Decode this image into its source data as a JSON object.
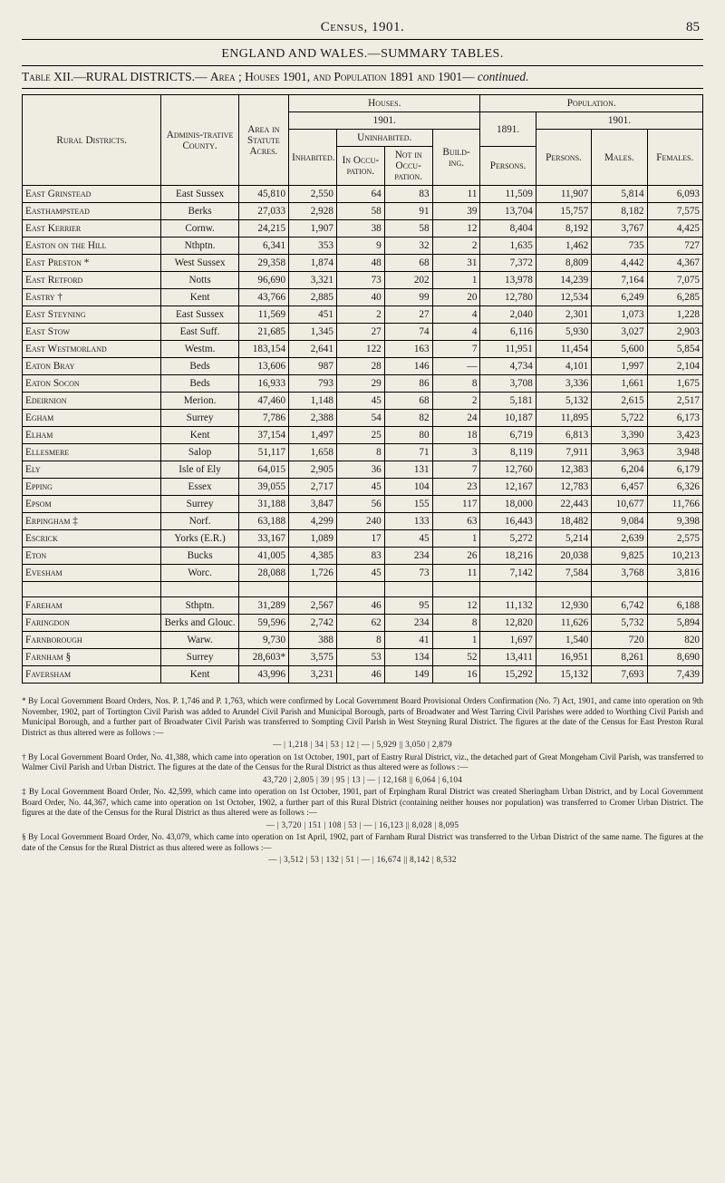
{
  "page": {
    "running_head": "Census, 1901.",
    "number": "85",
    "eng_wales": "ENGLAND AND WALES.—SUMMARY TABLES.",
    "table_line_a": "Table XII.—RURAL DISTRICTS.—",
    "table_line_b": "Area ; ",
    "table_line_c": "Houses 1901, and Population 1891 and 1901—",
    "table_line_d": "continued."
  },
  "headers": {
    "rural_districts": "Rural Districts.",
    "admin_county": "Adminis-trative County.",
    "area": "Area in Statute Acres.",
    "houses": "Houses.",
    "houses_1901": "1901.",
    "inhabited": "Inhabited.",
    "uninhabited": "Uninhabited.",
    "in_occ": "In Occu-pation.",
    "not_in_occ": "Not in Occu-pation.",
    "building": "Build-ing.",
    "population": "Population.",
    "pop_1891": "1891.",
    "pop_1901": "1901.",
    "persons": "Persons.",
    "persons2": "Persons.",
    "males": "Males.",
    "females": "Females."
  },
  "rows": [
    {
      "d": "East Grinstead",
      "c": "East Sussex",
      "a": "45,810",
      "i": "2,550",
      "o": "64",
      "n": "83",
      "b": "11",
      "p91": "11,509",
      "p01": "11,907",
      "m": "5,814",
      "f": "6,093"
    },
    {
      "d": "Easthampstead",
      "c": "Berks",
      "a": "27,033",
      "i": "2,928",
      "o": "58",
      "n": "91",
      "b": "39",
      "p91": "13,704",
      "p01": "15,757",
      "m": "8,182",
      "f": "7,575"
    },
    {
      "d": "East Kerrier",
      "c": "Cornw.",
      "a": "24,215",
      "i": "1,907",
      "o": "38",
      "n": "58",
      "b": "12",
      "p91": "8,404",
      "p01": "8,192",
      "m": "3,767",
      "f": "4,425"
    },
    {
      "d": "Easton on the Hill",
      "c": "Nthptn.",
      "a": "6,341",
      "i": "353",
      "o": "9",
      "n": "32",
      "b": "2",
      "p91": "1,635",
      "p01": "1,462",
      "m": "735",
      "f": "727"
    },
    {
      "d": "East Preston *",
      "c": "West Sussex",
      "a": "29,358",
      "i": "1,874",
      "o": "48",
      "n": "68",
      "b": "31",
      "p91": "7,372",
      "p01": "8,809",
      "m": "4,442",
      "f": "4,367"
    },
    {
      "d": "East Retford",
      "c": "Notts",
      "a": "96,690",
      "i": "3,321",
      "o": "73",
      "n": "202",
      "b": "1",
      "p91": "13,978",
      "p01": "14,239",
      "m": "7,164",
      "f": "7,075"
    },
    {
      "d": "Eastry †",
      "c": "Kent",
      "a": "43,766",
      "i": "2,885",
      "o": "40",
      "n": "99",
      "b": "20",
      "p91": "12,780",
      "p01": "12,534",
      "m": "6,249",
      "f": "6,285"
    },
    {
      "d": "East Steyning",
      "c": "East Sussex",
      "a": "11,569",
      "i": "451",
      "o": "2",
      "n": "27",
      "b": "4",
      "p91": "2,040",
      "p01": "2,301",
      "m": "1,073",
      "f": "1,228"
    },
    {
      "d": "East Stow",
      "c": "East Suff.",
      "a": "21,685",
      "i": "1,345",
      "o": "27",
      "n": "74",
      "b": "4",
      "p91": "6,116",
      "p01": "5,930",
      "m": "3,027",
      "f": "2,903"
    },
    {
      "d": "East Westmorland",
      "c": "Westm.",
      "a": "183,154",
      "i": "2,641",
      "o": "122",
      "n": "163",
      "b": "7",
      "p91": "11,951",
      "p01": "11,454",
      "m": "5,600",
      "f": "5,854"
    },
    {
      "d": "Eaton Bray",
      "c": "Beds",
      "a": "13,606",
      "i": "987",
      "o": "28",
      "n": "146",
      "b": "—",
      "p91": "4,734",
      "p01": "4,101",
      "m": "1,997",
      "f": "2,104"
    },
    {
      "d": "Eaton Socon",
      "c": "Beds",
      "a": "16,933",
      "i": "793",
      "o": "29",
      "n": "86",
      "b": "8",
      "p91": "3,708",
      "p01": "3,336",
      "m": "1,661",
      "f": "1,675"
    },
    {
      "d": "Edeirnion",
      "c": "Merion.",
      "a": "47,460",
      "i": "1,148",
      "o": "45",
      "n": "68",
      "b": "2",
      "p91": "5,181",
      "p01": "5,132",
      "m": "2,615",
      "f": "2,517"
    },
    {
      "d": "Egham",
      "c": "Surrey",
      "a": "7,786",
      "i": "2,388",
      "o": "54",
      "n": "82",
      "b": "24",
      "p91": "10,187",
      "p01": "11,895",
      "m": "5,722",
      "f": "6,173"
    },
    {
      "d": "Elham",
      "c": "Kent",
      "a": "37,154",
      "i": "1,497",
      "o": "25",
      "n": "80",
      "b": "18",
      "p91": "6,719",
      "p01": "6,813",
      "m": "3,390",
      "f": "3,423"
    },
    {
      "d": "Ellesmere",
      "c": "Salop",
      "a": "51,117",
      "i": "1,658",
      "o": "8",
      "n": "71",
      "b": "3",
      "p91": "8,119",
      "p01": "7,911",
      "m": "3,963",
      "f": "3,948"
    },
    {
      "d": "Ely",
      "c": "Isle of Ely",
      "a": "64,015",
      "i": "2,905",
      "o": "36",
      "n": "131",
      "b": "7",
      "p91": "12,760",
      "p01": "12,383",
      "m": "6,204",
      "f": "6,179"
    },
    {
      "d": "Epping",
      "c": "Essex",
      "a": "39,055",
      "i": "2,717",
      "o": "45",
      "n": "104",
      "b": "23",
      "p91": "12,167",
      "p01": "12,783",
      "m": "6,457",
      "f": "6,326"
    },
    {
      "d": "Epsom",
      "c": "Surrey",
      "a": "31,188",
      "i": "3,847",
      "o": "56",
      "n": "155",
      "b": "117",
      "p91": "18,000",
      "p01": "22,443",
      "m": "10,677",
      "f": "11,766"
    },
    {
      "d": "Erpingham ‡",
      "c": "Norf.",
      "a": "63,188",
      "i": "4,299",
      "o": "240",
      "n": "133",
      "b": "63",
      "p91": "16,443",
      "p01": "18,482",
      "m": "9,084",
      "f": "9,398"
    },
    {
      "d": "Escrick",
      "c": "Yorks (E.R.)",
      "a": "33,167",
      "i": "1,089",
      "o": "17",
      "n": "45",
      "b": "1",
      "p91": "5,272",
      "p01": "5,214",
      "m": "2,639",
      "f": "2,575"
    },
    {
      "d": "Eton",
      "c": "Bucks",
      "a": "41,005",
      "i": "4,385",
      "o": "83",
      "n": "234",
      "b": "26",
      "p91": "18,216",
      "p01": "20,038",
      "m": "9,825",
      "f": "10,213"
    },
    {
      "d": "Evesham",
      "c": "Worc.",
      "a": "28,088",
      "i": "1,726",
      "o": "45",
      "n": "73",
      "b": "11",
      "p91": "7,142",
      "p01": "7,584",
      "m": "3,768",
      "f": "3,816"
    }
  ],
  "rows2": [
    {
      "d": "Fareham",
      "c": "Sthptn.",
      "a": "31,289",
      "i": "2,567",
      "o": "46",
      "n": "95",
      "b": "12",
      "p91": "11,132",
      "p01": "12,930",
      "m": "6,742",
      "f": "6,188"
    },
    {
      "d": "Faringdon",
      "c": "Berks and Glouc.",
      "a": "59,596",
      "i": "2,742",
      "o": "62",
      "n": "234",
      "b": "8",
      "p91": "12,820",
      "p01": "11,626",
      "m": "5,732",
      "f": "5,894"
    },
    {
      "d": "Farnborough",
      "c": "Warw.",
      "a": "9,730",
      "i": "388",
      "o": "8",
      "n": "41",
      "b": "1",
      "p91": "1,697",
      "p01": "1,540",
      "m": "720",
      "f": "820"
    },
    {
      "d": "Farnham §",
      "c": "Surrey",
      "a": "28,603*",
      "i": "3,575",
      "o": "53",
      "n": "134",
      "b": "52",
      "p91": "13,411",
      "p01": "16,951",
      "m": "8,261",
      "f": "8,690"
    },
    {
      "d": "Faversham",
      "c": "Kent",
      "a": "43,996",
      "i": "3,231",
      "o": "46",
      "n": "149",
      "b": "16",
      "p91": "15,292",
      "p01": "15,132",
      "m": "7,693",
      "f": "7,439"
    }
  ],
  "footnotes": {
    "f1": "* By Local Government Board Orders, Nos. P. 1,746 and P. 1,763, which were confirmed by Local Government Board Provisional Orders Confirmation (No. 7) Act, 1901, and came into operation on 9th November, 1902, part of Tortington Civil Parish was added to Arundel Civil Parish and Municipal Borough, parts of Broadwater and West Tarring Civil Parishes were added to Worthing Civil Parish and Municipal Borough, and a further part of Broadwater Civil Parish was transferred to Sompting Civil Parish in West Steyning Rural District. The figures at the date of the Census for East Preston Rural District as thus altered were as follows :—",
    "mini1": "— |   1,218 |   34 |   53 |   12 |   — |   5,929 ||   3,050 |   2,879",
    "f2": "† By Local Government Board Order, No. 41,388, which came into operation on 1st October, 1901, part of Eastry Rural District, viz., the detached part of Great Mongeham Civil Parish, was transferred to Walmer Civil Parish and Urban District.   The figures at the date of the Census for the Rural District as thus altered were as follows :—",
    "mini2": "43,720 |   2,805 |   39 |   95 |   13 |   — |   12,168 ||   6,064 |   6,104",
    "f3": "‡ By Local Government Board Order, No. 42,599, which came into operation on 1st October, 1901, part of Erpingham Rural District was created Sheringham Urban District, and by Local Government Board Order, No. 44,367, which came into operation on 1st October, 1902, a further part of this Rural District (containing neither houses nor population) was transferred to Cromer Urban District.   The figures at the date of the Census for the Rural District as thus altered were as follows :—",
    "mini3": "— |   3,720 |   151 |   108 |   53 |   — |   16,123 ||   8,028 |   8,095",
    "f4": "§ By Local Government Board Order, No. 43,079, which came into operation on 1st April, 1902, part of Farnham Rural District was transferred to the Urban District of the same name. The figures at the date of the Census for the Rural District as thus altered were as follows :—",
    "mini4": "— |   3,512 |   53 |   132 |   51 |   — |   16,674 ||   8,142 |   8,532"
  }
}
